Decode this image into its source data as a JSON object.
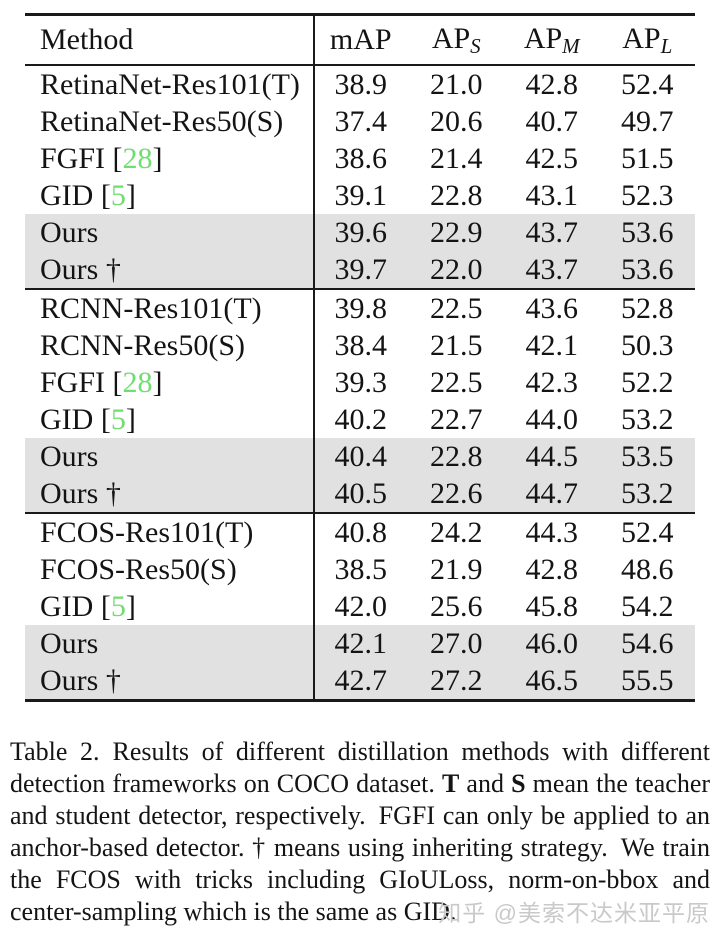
{
  "colors": {
    "citation_green": "#70dd70",
    "row_highlight": "#e1e1e1",
    "watermark_gray": "#c9c9c9"
  },
  "table": {
    "header": {
      "method": "Method",
      "cols": [
        {
          "base": "mAP",
          "sub": ""
        },
        {
          "base": "AP",
          "sub": "S"
        },
        {
          "base": "AP",
          "sub": "M"
        },
        {
          "base": "AP",
          "sub": "L"
        }
      ]
    },
    "sections": [
      {
        "rows": [
          {
            "name": "RetinaNet-Res101(T)",
            "cite": "",
            "highlight": false,
            "values": [
              "38.9",
              "21.0",
              "42.8",
              "52.4"
            ]
          },
          {
            "name": "RetinaNet-Res50(S)",
            "cite": "",
            "highlight": false,
            "values": [
              "37.4",
              "20.6",
              "40.7",
              "49.7"
            ]
          },
          {
            "name": "FGFI",
            "cite": "28",
            "highlight": false,
            "values": [
              "38.6",
              "21.4",
              "42.5",
              "51.5"
            ]
          },
          {
            "name": "GID",
            "cite": "5",
            "highlight": false,
            "values": [
              "39.1",
              "22.8",
              "43.1",
              "52.3"
            ]
          },
          {
            "name": "Ours",
            "cite": "",
            "highlight": true,
            "values": [
              "39.6",
              "22.9",
              "43.7",
              "53.6"
            ]
          },
          {
            "name": "Ours †",
            "cite": "",
            "highlight": true,
            "values": [
              "39.7",
              "22.0",
              "43.7",
              "53.6"
            ]
          }
        ]
      },
      {
        "rows": [
          {
            "name": "RCNN-Res101(T)",
            "cite": "",
            "highlight": false,
            "values": [
              "39.8",
              "22.5",
              "43.6",
              "52.8"
            ]
          },
          {
            "name": "RCNN-Res50(S)",
            "cite": "",
            "highlight": false,
            "values": [
              "38.4",
              "21.5",
              "42.1",
              "50.3"
            ]
          },
          {
            "name": "FGFI",
            "cite": "28",
            "highlight": false,
            "values": [
              "39.3",
              "22.5",
              "42.3",
              "52.2"
            ]
          },
          {
            "name": "GID",
            "cite": "5",
            "highlight": false,
            "values": [
              "40.2",
              "22.7",
              "44.0",
              "53.2"
            ]
          },
          {
            "name": "Ours",
            "cite": "",
            "highlight": true,
            "values": [
              "40.4",
              "22.8",
              "44.5",
              "53.5"
            ]
          },
          {
            "name": "Ours †",
            "cite": "",
            "highlight": true,
            "values": [
              "40.5",
              "22.6",
              "44.7",
              "53.2"
            ]
          }
        ]
      },
      {
        "rows": [
          {
            "name": "FCOS-Res101(T)",
            "cite": "",
            "highlight": false,
            "values": [
              "40.8",
              "24.2",
              "44.3",
              "52.4"
            ]
          },
          {
            "name": "FCOS-Res50(S)",
            "cite": "",
            "highlight": false,
            "values": [
              "38.5",
              "21.9",
              "42.8",
              "48.6"
            ]
          },
          {
            "name": "GID",
            "cite": "5",
            "highlight": false,
            "values": [
              "42.0",
              "25.6",
              "45.8",
              "54.2"
            ]
          },
          {
            "name": "Ours",
            "cite": "",
            "highlight": true,
            "values": [
              "42.1",
              "27.0",
              "46.0",
              "54.6"
            ]
          },
          {
            "name": "Ours †",
            "cite": "",
            "highlight": true,
            "values": [
              "42.7",
              "27.2",
              "46.5",
              "55.5"
            ]
          }
        ]
      }
    ]
  },
  "caption": {
    "segments": [
      {
        "text": "Table 2. Results of different distillation methods with different detection frameworks on COCO dataset. ",
        "bold": false
      },
      {
        "text": "T",
        "bold": true
      },
      {
        "text": " and ",
        "bold": false
      },
      {
        "text": "S",
        "bold": true
      },
      {
        "text": " mean the teacher and student detector, respectively. FGFI can only be applied to an anchor-based detector. † means using inheriting strategy. We train the FCOS with tricks including GIoULoss, norm-on-bbox and center-sampling which is the same as GID.",
        "bold": false
      }
    ]
  },
  "watermark": {
    "text": "知乎 @美索不达米亚平原"
  }
}
